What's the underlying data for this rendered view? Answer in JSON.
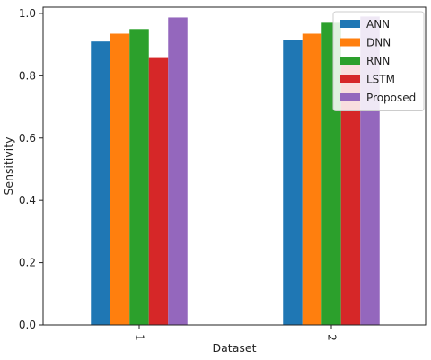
{
  "chart_data": {
    "type": "bar",
    "title": "",
    "xlabel": "Dataset",
    "ylabel": "Sensitivity",
    "categories": [
      "1",
      "2"
    ],
    "ylim": [
      0,
      1.02
    ],
    "yticks": [
      0.0,
      0.2,
      0.4,
      0.6,
      0.8,
      1.0
    ],
    "ytick_labels": [
      "0.0",
      "0.2",
      "0.4",
      "0.6",
      "0.8",
      "1.0"
    ],
    "xtick_rotation": 90,
    "grid": false,
    "legend": "top-right",
    "series": [
      {
        "name": "ANN",
        "color": "#1f77b4",
        "values": [
          0.91,
          0.915
        ]
      },
      {
        "name": "DNN",
        "color": "#ff7f0e",
        "values": [
          0.935,
          0.935
        ]
      },
      {
        "name": "RNN",
        "color": "#2ca02c",
        "values": [
          0.95,
          0.97
        ]
      },
      {
        "name": "LSTM",
        "color": "#d62728",
        "values": [
          0.857,
          0.86
        ]
      },
      {
        "name": "Proposed",
        "color": "#9467bd",
        "values": [
          0.987,
          0.99
        ]
      }
    ]
  }
}
